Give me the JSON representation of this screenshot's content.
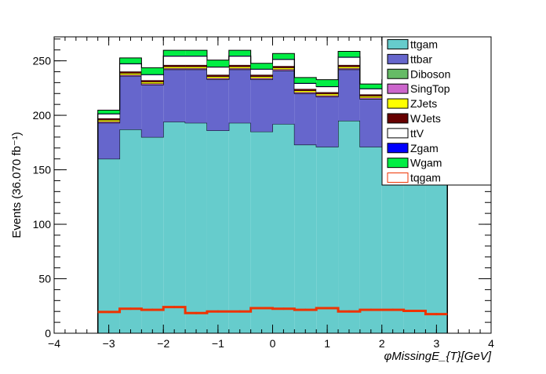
{
  "chart_data": {
    "type": "bar",
    "stacked": true,
    "xlabel": "φMissingE_{T}[GeV]",
    "ylabel": "Events (36.070 fb⁻¹)",
    "xlim": [
      -4,
      4
    ],
    "ylim": [
      0,
      272
    ],
    "xticks": [
      "−4",
      "−3",
      "−2",
      "−1",
      "0",
      "1",
      "2",
      "3",
      "4"
    ],
    "yticks": [
      "0",
      "50",
      "100",
      "150",
      "200",
      "250"
    ],
    "grid": false,
    "legend_position": "top-right",
    "bin_edges": [
      -3.2,
      -2.8,
      -2.4,
      -2.0,
      -1.6,
      -1.2,
      -0.8,
      -0.4,
      0.0,
      0.4,
      0.8,
      1.2,
      1.6,
      2.0,
      2.4,
      2.8,
      3.2
    ],
    "series": [
      {
        "name": "ttgam",
        "color": "#66cccc",
        "values": [
          160,
          187,
          180,
          194,
          193,
          186,
          193,
          185,
          192,
          173,
          171,
          195,
          171,
          174,
          176,
          178
        ]
      },
      {
        "name": "ttbar",
        "color": "#6666cc",
        "values": [
          33,
          49,
          48,
          48,
          49,
          47,
          49,
          48,
          49,
          47,
          46,
          47,
          44,
          45,
          44,
          44
        ]
      },
      {
        "name": "Diboson",
        "color": "#66bb66",
        "values": [
          0.2,
          0.2,
          0.2,
          0.2,
          0.2,
          0.2,
          0.2,
          0.2,
          0.2,
          0.2,
          0.2,
          0.2,
          0.2,
          0.2,
          0.2,
          0.2
        ]
      },
      {
        "name": "SingTop",
        "color": "#cc66cc",
        "values": [
          1,
          1,
          1,
          1,
          1,
          1,
          1,
          1,
          1,
          1,
          1,
          1,
          1,
          1,
          1,
          1
        ]
      },
      {
        "name": "ZJets",
        "color": "#ffff00",
        "values": [
          1.5,
          1.5,
          1.5,
          1.5,
          1.5,
          1.5,
          1.5,
          1.5,
          1.5,
          1.5,
          1.5,
          1.5,
          1.5,
          1.5,
          1.5,
          1.5
        ]
      },
      {
        "name": "WJets",
        "color": "#660000",
        "values": [
          1.5,
          1.5,
          1.5,
          1.5,
          1.5,
          1.5,
          1.5,
          1.5,
          1.5,
          1.5,
          1.5,
          1.5,
          1.5,
          1.5,
          1.5,
          1.5
        ]
      },
      {
        "name": "ttV",
        "color": "#ffffff",
        "values": [
          4,
          7,
          5,
          8,
          8,
          7,
          8,
          5,
          6,
          5,
          5,
          7,
          5,
          5,
          5,
          5
        ]
      },
      {
        "name": "Zgam",
        "color": "#0000ff",
        "values": [
          0.5,
          0.5,
          0.5,
          0.5,
          0.5,
          0.5,
          0.5,
          0.5,
          0.5,
          0.5,
          0.5,
          0.5,
          0.5,
          0.5,
          0.5,
          0.5
        ]
      },
      {
        "name": "Wgam",
        "color": "#00ee44",
        "values": [
          3,
          5,
          6,
          5,
          5,
          6,
          5,
          5,
          5,
          5,
          6,
          5,
          4,
          4,
          4,
          4
        ]
      }
    ],
    "overlay": {
      "name": "tqgam",
      "color": "#ee3300",
      "style": "line-errorbars",
      "values": [
        19.5,
        22.5,
        21.5,
        24,
        18.5,
        20,
        20,
        23,
        22.5,
        21.5,
        23,
        20,
        21.5,
        21.5,
        20.5,
        17.5
      ],
      "errors": [
        1,
        1,
        1,
        1,
        1,
        1,
        1,
        1,
        1,
        1,
        1,
        1,
        1,
        1,
        1,
        1
      ]
    },
    "legend": [
      {
        "label": "ttgam",
        "color": "#66cccc",
        "style": "fill"
      },
      {
        "label": "ttbar",
        "color": "#6666cc",
        "style": "fill"
      },
      {
        "label": "Diboson",
        "color": "#66bb66",
        "style": "fill"
      },
      {
        "label": "SingTop",
        "color": "#cc66cc",
        "style": "fill"
      },
      {
        "label": "ZJets",
        "color": "#ffff00",
        "style": "fill"
      },
      {
        "label": "WJets",
        "color": "#660000",
        "style": "fill"
      },
      {
        "label": "ttV",
        "color": "#ffffff",
        "style": "fill"
      },
      {
        "label": "Zgam",
        "color": "#0000ff",
        "style": "fill"
      },
      {
        "label": "Wgam",
        "color": "#00ee44",
        "style": "fill"
      },
      {
        "label": "tqgam",
        "color": "#ee3300",
        "style": "line"
      }
    ]
  }
}
